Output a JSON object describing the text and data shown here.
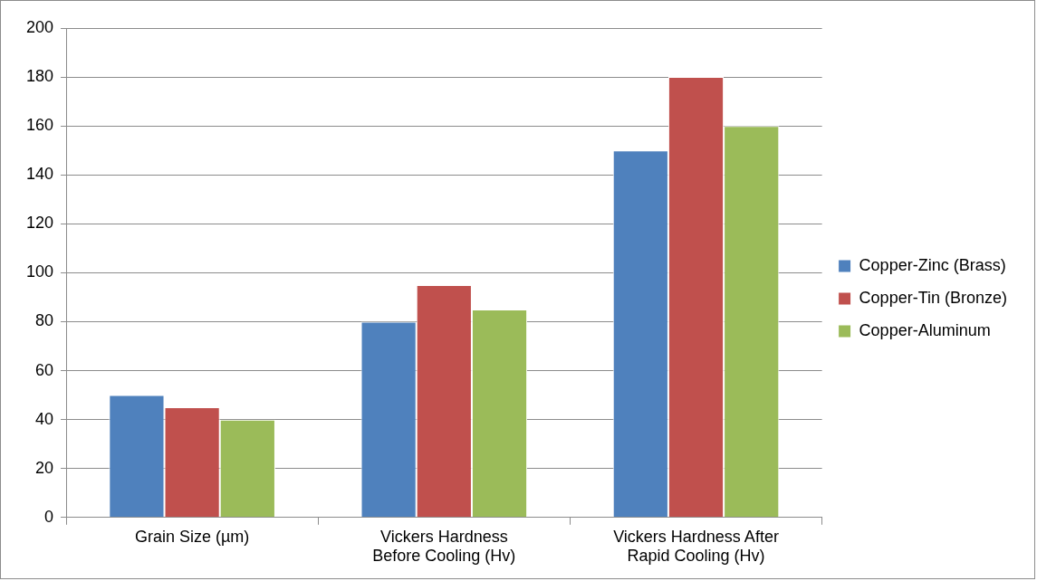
{
  "chart_data": {
    "type": "bar",
    "categories": [
      "Grain Size (µm)",
      "Vickers Hardness Before Cooling (Hv)",
      "Vickers Hardness After Rapid Cooling (Hv)"
    ],
    "series": [
      {
        "name": "Copper-Zinc (Brass)",
        "color": "#4f81bd",
        "values": [
          50,
          80,
          150
        ]
      },
      {
        "name": "Copper-Tin (Bronze)",
        "color": "#c0504d",
        "values": [
          45,
          95,
          180
        ]
      },
      {
        "name": "Copper-Aluminum",
        "color": "#9bbb59",
        "values": [
          40,
          85,
          160
        ]
      }
    ],
    "ylim": [
      0,
      200
    ],
    "yticks": [
      0,
      20,
      40,
      60,
      80,
      100,
      120,
      140,
      160,
      180,
      200
    ],
    "grid": "y",
    "legend": "right"
  }
}
